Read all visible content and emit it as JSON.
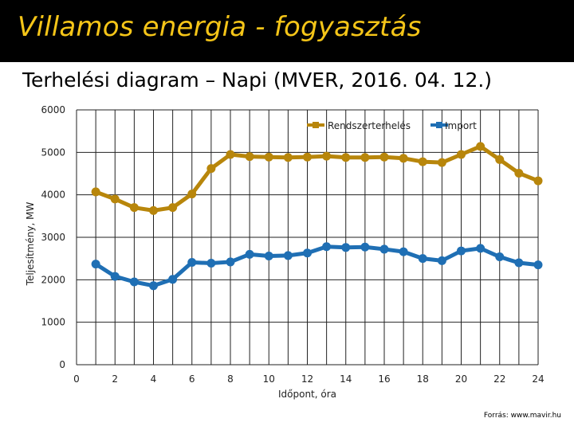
{
  "header": {
    "title": "Villamos energia - fogyasztás",
    "subtitle": "Terhelési diagram – Napi (MVER, 2016. 04. 12.)"
  },
  "source": "Forrás: www.mavir.hu",
  "colors": {
    "title_text": "#f5c518",
    "series_load": "#b8860b",
    "series_import": "#1f6fb4",
    "grid": "#222222"
  },
  "chart_data": {
    "type": "line",
    "title": "",
    "xlabel": "Időpont, óra",
    "ylabel": "Teljesítmény, MW",
    "xlim": [
      0,
      24
    ],
    "ylim": [
      0,
      6000
    ],
    "x_ticks": [
      0,
      2,
      4,
      6,
      8,
      10,
      12,
      14,
      16,
      18,
      20,
      22,
      24
    ],
    "y_ticks": [
      0,
      1000,
      2000,
      3000,
      4000,
      5000,
      6000
    ],
    "grid": true,
    "legend_position": "top-right",
    "x": [
      1,
      2,
      3,
      4,
      5,
      6,
      7,
      8,
      9,
      10,
      11,
      12,
      13,
      14,
      15,
      16,
      17,
      18,
      19,
      20,
      21,
      22,
      23,
      24
    ],
    "series": [
      {
        "name": "Rendszerterhelés",
        "values": [
          4070,
          3900,
          3700,
          3630,
          3700,
          4020,
          4620,
          4950,
          4900,
          4890,
          4880,
          4890,
          4910,
          4880,
          4880,
          4890,
          4860,
          4780,
          4760,
          4950,
          5140,
          4830,
          4510,
          4330
        ]
      },
      {
        "name": "Import",
        "values": [
          2370,
          2080,
          1950,
          1860,
          2010,
          2410,
          2390,
          2420,
          2600,
          2560,
          2570,
          2630,
          2780,
          2760,
          2770,
          2720,
          2660,
          2500,
          2450,
          2680,
          2740,
          2540,
          2400,
          2350
        ]
      }
    ]
  }
}
